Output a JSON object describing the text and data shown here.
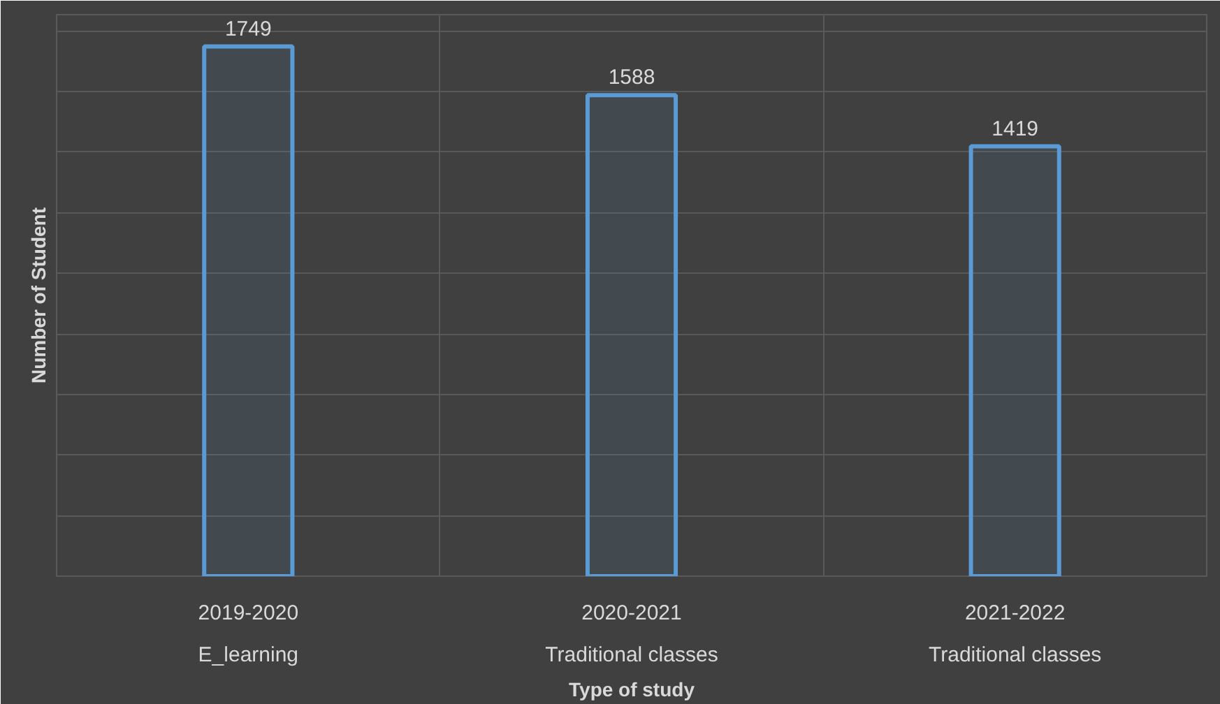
{
  "chart_data": {
    "type": "bar",
    "categories": [
      "2019-2020",
      "2020-2021",
      "2021-2022"
    ],
    "annotations": [
      "E_learning",
      "Traditional classes",
      "Traditional classes"
    ],
    "values": [
      1749,
      1588,
      1419
    ],
    "color": "#5b9bd5",
    "data_labels": true,
    "xlabel": "Type of study",
    "ylabel": "Number of Student",
    "tick_labels": "x",
    "grid": true
  }
}
